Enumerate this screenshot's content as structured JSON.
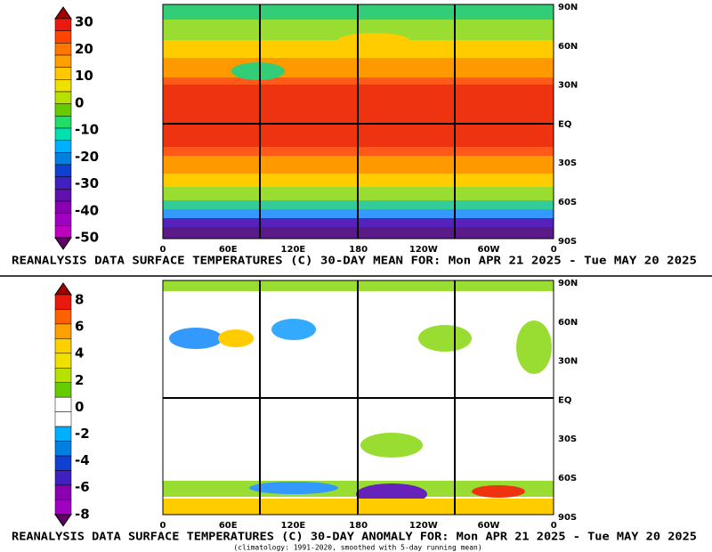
{
  "panels": [
    {
      "colorbar_labels": [
        "30",
        "20",
        "10",
        "0",
        "-10",
        "-20",
        "-30",
        "-40",
        "-50"
      ],
      "lat_labels": [
        "90N",
        "60N",
        "30N",
        "EQ",
        "30S",
        "60S",
        "90S"
      ],
      "lon_labels": [
        "0",
        "60E",
        "120E",
        "180",
        "120W",
        "60W",
        "0"
      ],
      "title": "REANALYSIS DATA SURFACE TEMPERATURES (C) 30-DAY MEAN FOR: Mon APR 21 2025 - Tue MAY 20 2025"
    },
    {
      "colorbar_labels": [
        "8",
        "6",
        "4",
        "2",
        "0",
        "-2",
        "-4",
        "-6",
        "-8"
      ],
      "lat_labels": [
        "90N",
        "60N",
        "30N",
        "EQ",
        "30S",
        "60S",
        "90S"
      ],
      "lon_labels": [
        "0",
        "60E",
        "120E",
        "180",
        "120W",
        "60W",
        "0"
      ],
      "title": "REANALYSIS DATA SURFACE TEMPERATURES (C) 30-DAY ANOMALY FOR: Mon APR 21 2025 - Tue MAY 20 2025"
    }
  ],
  "footnote": "(climatology: 1991-2020, smoothed with 5-day running mean)"
}
